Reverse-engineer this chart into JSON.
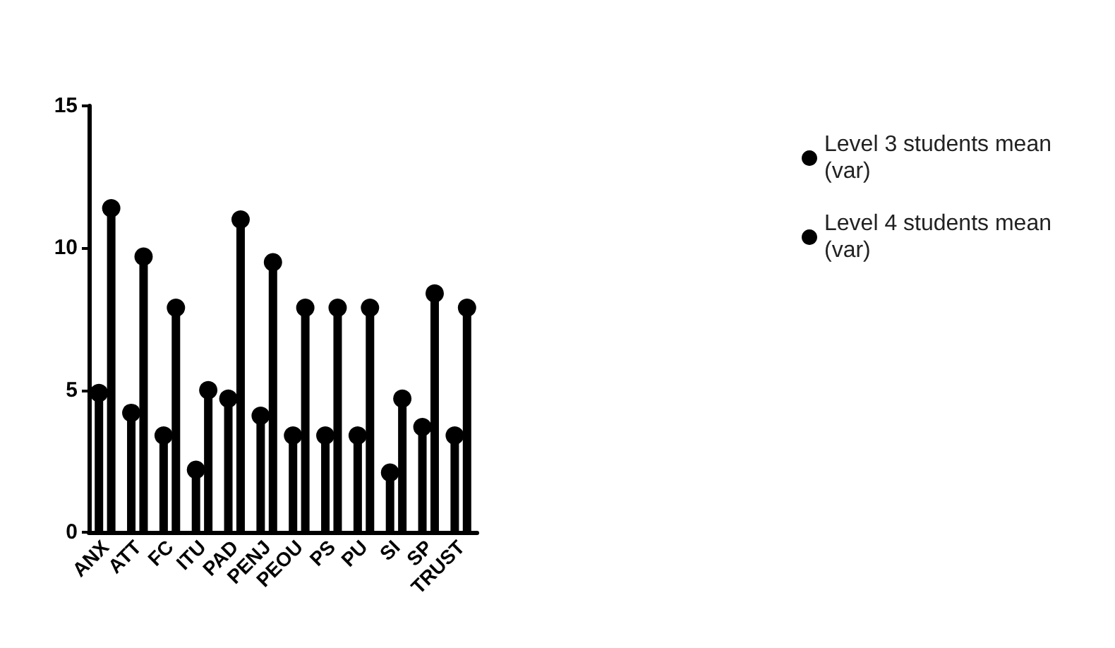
{
  "chart_data": {
    "type": "lollipop",
    "categories": [
      "ANX",
      "ATT",
      "FC",
      "ITU",
      "PAD",
      "PENJ",
      "PEOU",
      "PS",
      "PU",
      "SI",
      "SP",
      "TRUST"
    ],
    "series": [
      {
        "name": "Level 3 students mean (var)",
        "color": "#000000",
        "values": [
          4.9,
          4.2,
          3.4,
          2.2,
          4.7,
          4.1,
          3.4,
          3.4,
          3.4,
          2.1,
          3.7,
          3.4
        ]
      },
      {
        "name": "Level 4 students mean (var)",
        "color": "#000000",
        "values": [
          11.4,
          9.7,
          7.9,
          5.0,
          11.0,
          9.5,
          7.9,
          7.9,
          7.9,
          4.7,
          8.4,
          7.9
        ]
      }
    ],
    "ylim": [
      0,
      15
    ],
    "yticks": [
      0,
      5,
      10,
      15
    ],
    "legend": "right",
    "marker": "circle"
  }
}
